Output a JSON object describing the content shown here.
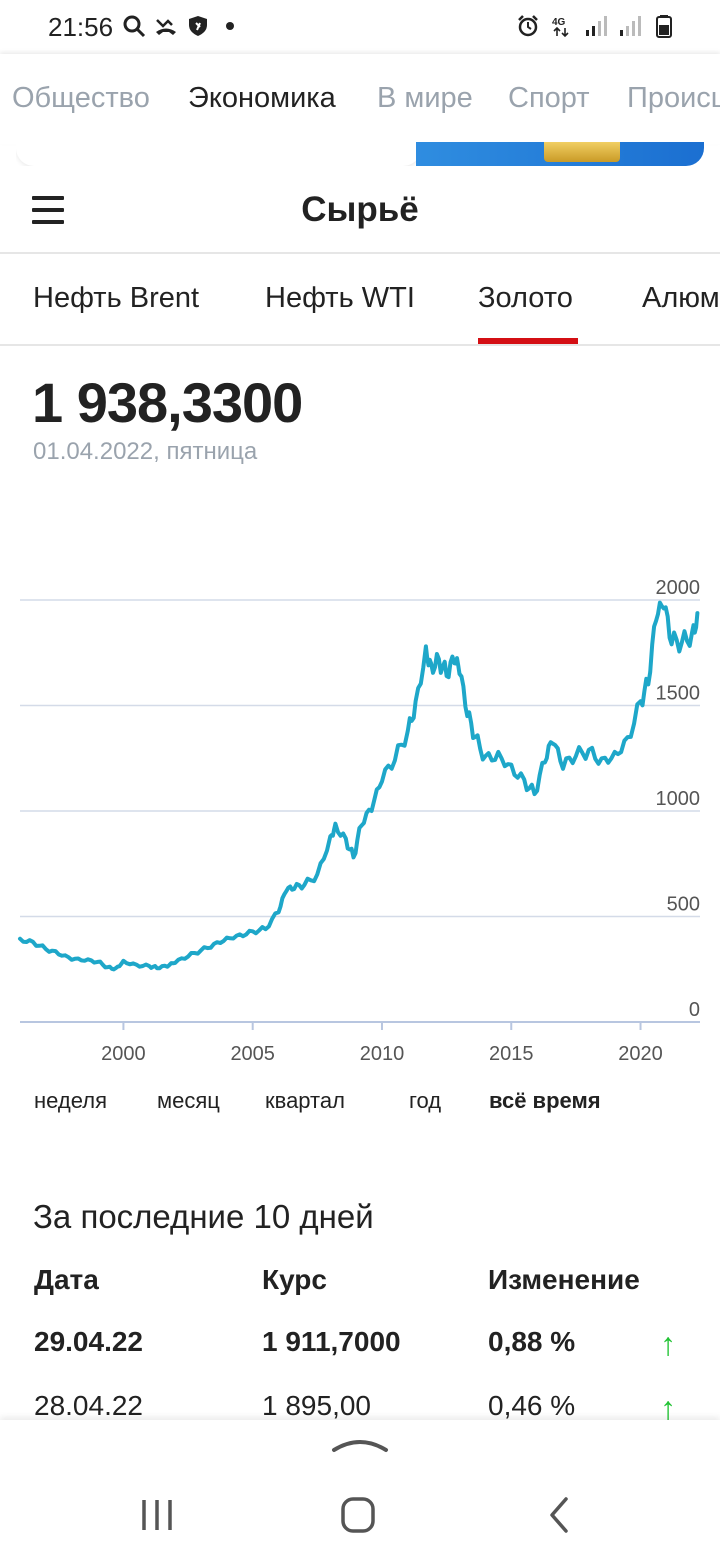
{
  "status_bar": {
    "time": "21:56",
    "left_icons": [
      "search-icon",
      "missed-call-icon",
      "shield-icon",
      "dot-icon"
    ],
    "right_icons": [
      "alarm-icon",
      "4g-icon",
      "signal-icon",
      "signal-icon",
      "battery-icon"
    ]
  },
  "rubrics": [
    "Общество",
    "Экономика",
    "В мире",
    "Спорт",
    "Происшествия"
  ],
  "rubrics_active": "Экономика",
  "header": {
    "title": "Сырьё",
    "menu_icon": "hamburger-menu-icon"
  },
  "tabs": {
    "items": [
      "Нефть Brent",
      "Нефть WTI",
      "Золото",
      "Алюминий"
    ],
    "active": "Золото"
  },
  "price": {
    "value": "1 938,3300",
    "date": "01.04.2022, пятница"
  },
  "chart_data": {
    "type": "line",
    "x_ticks": [
      "2000",
      "2005",
      "2010",
      "2015",
      "2020"
    ],
    "y_ticks": [
      "0",
      "500",
      "1000",
      "1500",
      "2000"
    ],
    "xlim": [
      1996,
      2022.3
    ],
    "ylim": [
      0,
      2000
    ],
    "grid": true,
    "line_color": "#1ea7c9",
    "x": [
      1996.0,
      1996.5,
      1997.0,
      1997.5,
      1998.0,
      1998.5,
      1999.0,
      1999.4,
      1999.7,
      2000.0,
      2000.5,
      2001.0,
      2001.3,
      2001.7,
      2002.0,
      2002.5,
      2003.0,
      2003.5,
      2004.0,
      2004.5,
      2005.0,
      2005.5,
      2006.0,
      2006.3,
      2006.6,
      2007.0,
      2007.5,
      2008.0,
      2008.2,
      2008.6,
      2008.9,
      2009.2,
      2009.6,
      2010.0,
      2010.5,
      2011.0,
      2011.3,
      2011.7,
      2011.9,
      2012.2,
      2012.5,
      2012.8,
      2013.0,
      2013.3,
      2013.6,
      2014.0,
      2014.5,
      2015.0,
      2015.5,
      2015.9,
      2016.3,
      2016.6,
      2017.0,
      2017.5,
      2018.0,
      2018.5,
      2019.0,
      2019.5,
      2020.0,
      2020.3,
      2020.6,
      2020.9,
      2021.2,
      2021.6,
      2022.0,
      2022.2
    ],
    "y": [
      395,
      380,
      345,
      320,
      295,
      290,
      285,
      260,
      255,
      290,
      272,
      265,
      255,
      262,
      280,
      310,
      340,
      370,
      400,
      415,
      430,
      440,
      520,
      620,
      630,
      650,
      700,
      880,
      940,
      870,
      780,
      930,
      1000,
      1140,
      1240,
      1380,
      1520,
      1780,
      1700,
      1720,
      1640,
      1700,
      1650,
      1450,
      1350,
      1260,
      1280,
      1220,
      1150,
      1080,
      1230,
      1320,
      1200,
      1260,
      1290,
      1250,
      1280,
      1350,
      1520,
      1600,
      1900,
      1960,
      1790,
      1800,
      1850,
      1938
    ]
  },
  "periods": {
    "items": [
      "неделя",
      "месяц",
      "квартал",
      "год",
      "всё время"
    ],
    "active": "всё время"
  },
  "table": {
    "title": "За последние 10 дней",
    "headers": [
      "Дата",
      "Курс",
      "Изменение"
    ],
    "rows": [
      {
        "date": "29.04.22",
        "rate": "1 911,7000",
        "change": "0,88 %",
        "direction": "up",
        "icon": "arrow-up-icon",
        "arrow_char": "↑"
      },
      {
        "date": "28.04.22",
        "rate": "1 895,00",
        "change": "0,46 %",
        "direction": "up",
        "icon": "arrow-up-icon",
        "arrow_char": "↑"
      }
    ]
  },
  "navbar": {
    "buttons": [
      "recent-apps-icon",
      "home-icon",
      "back-icon"
    ],
    "handle_icon": "chevron-up-icon"
  }
}
